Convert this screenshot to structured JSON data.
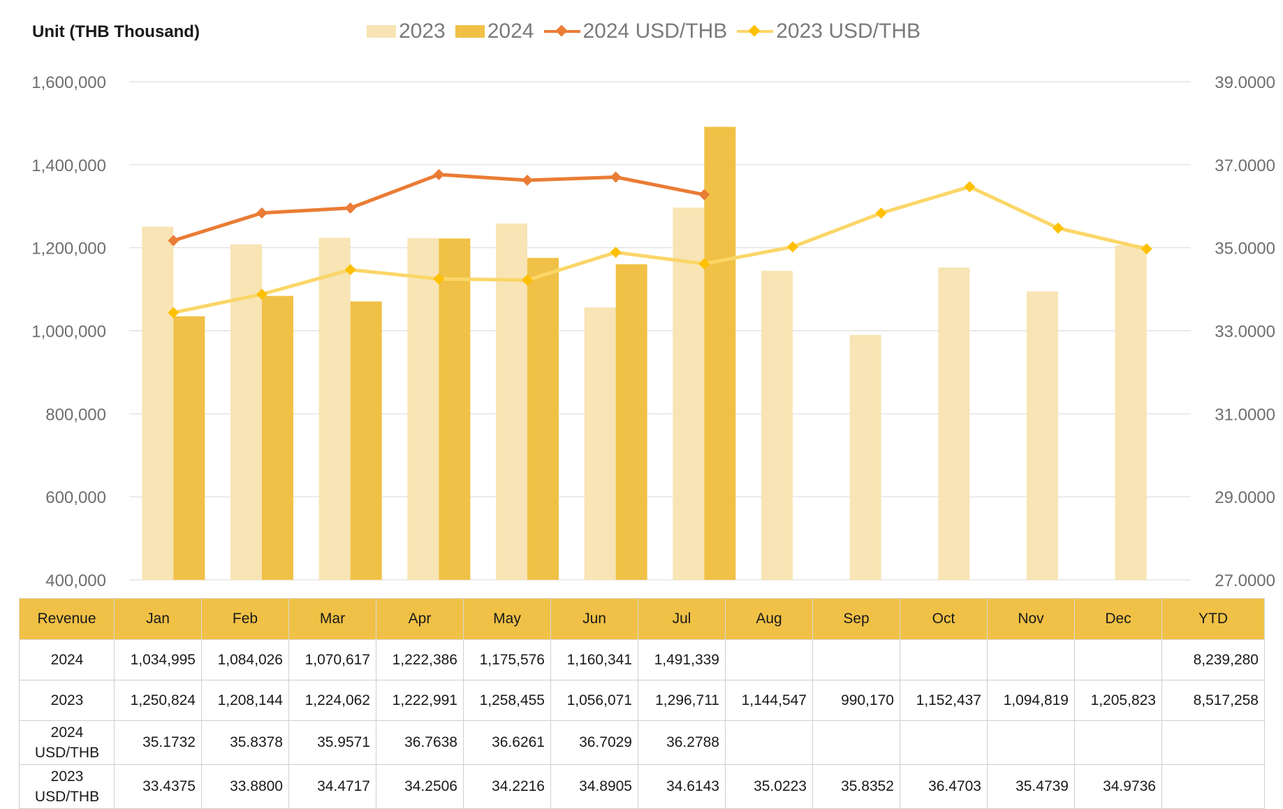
{
  "unit_label": "Unit (THB  Thousand)",
  "colors": {
    "bar_2023": "#f8e4b4",
    "bar_2024": "#f0c146",
    "line_2024": "#ea7c35",
    "line_2024_marker": "#ea7c35",
    "line_2023": "#fbd668",
    "line_2023_marker": "#ffc000",
    "grid": "#d9d9d9",
    "axis_text": "#6e6e6e",
    "header_bg": "#f0c146"
  },
  "chart_data": {
    "type": "bar",
    "categories": [
      "Jan",
      "Feb",
      "Mar",
      "Apr",
      "May",
      "Jun",
      "Jul",
      "Aug",
      "Sep",
      "Oct",
      "Nov",
      "Dec"
    ],
    "series": [
      {
        "name": "2023",
        "kind": "bar",
        "axis": "left",
        "values": [
          1250824,
          1208144,
          1224062,
          1222991,
          1258455,
          1056071,
          1296711,
          1144547,
          990170,
          1152437,
          1094819,
          1205823
        ]
      },
      {
        "name": "2024",
        "kind": "bar",
        "axis": "left",
        "values": [
          1034995,
          1084026,
          1070617,
          1222386,
          1175576,
          1160341,
          1491339,
          null,
          null,
          null,
          null,
          null
        ]
      },
      {
        "name": "2024 USD/THB",
        "kind": "line",
        "axis": "right",
        "values": [
          35.1732,
          35.8378,
          35.9571,
          36.7638,
          36.6261,
          36.7029,
          36.2788,
          null,
          null,
          null,
          null,
          null
        ]
      },
      {
        "name": "2023 USD/THB",
        "kind": "line",
        "axis": "right",
        "values": [
          33.4375,
          33.88,
          34.4717,
          34.2506,
          34.2216,
          34.8905,
          34.6143,
          35.0223,
          35.8352,
          36.4703,
          35.4739,
          34.9736
        ]
      }
    ],
    "ylim": [
      400000,
      1600000
    ],
    "yticks": [
      "400,000",
      "600,000",
      "800,000",
      "1,000,000",
      "1,200,000",
      "1,400,000",
      "1,600,000"
    ],
    "y2lim": [
      27,
      39
    ],
    "y2ticks": [
      "27.0000",
      "29.0000",
      "31.0000",
      "33.0000",
      "35.0000",
      "37.0000",
      "39.0000"
    ],
    "grid": true,
    "legend_position": "top"
  },
  "table": {
    "header": [
      "Revenue",
      "Jan",
      "Feb",
      "Mar",
      "Apr",
      "May",
      "Jun",
      "Jul",
      "Aug",
      "Sep",
      "Oct",
      "Nov",
      "Dec",
      "YTD"
    ],
    "rows": [
      {
        "label": "2024",
        "cells": [
          "1,034,995",
          "1,084,026",
          "1,070,617",
          "1,222,386",
          "1,175,576",
          "1,160,341",
          "1,491,339",
          "",
          "",
          "",
          "",
          "",
          "8,239,280"
        ]
      },
      {
        "label": "2023",
        "cells": [
          "1,250,824",
          "1,208,144",
          "1,224,062",
          "1,222,991",
          "1,258,455",
          "1,056,071",
          "1,296,711",
          "1,144,547",
          "990,170",
          "1,152,437",
          "1,094,819",
          "1,205,823",
          "8,517,258"
        ]
      },
      {
        "label": "2024 USD/THB",
        "cells": [
          "35.1732",
          "35.8378",
          "35.9571",
          "36.7638",
          "36.6261",
          "36.7029",
          "36.2788",
          "",
          "",
          "",
          "",
          "",
          ""
        ]
      },
      {
        "label": "2023 USD/THB",
        "cells": [
          "33.4375",
          "33.8800",
          "34.4717",
          "34.2506",
          "34.2216",
          "34.8905",
          "34.6143",
          "35.0223",
          "35.8352",
          "36.4703",
          "35.4739",
          "34.9736",
          ""
        ]
      }
    ]
  }
}
